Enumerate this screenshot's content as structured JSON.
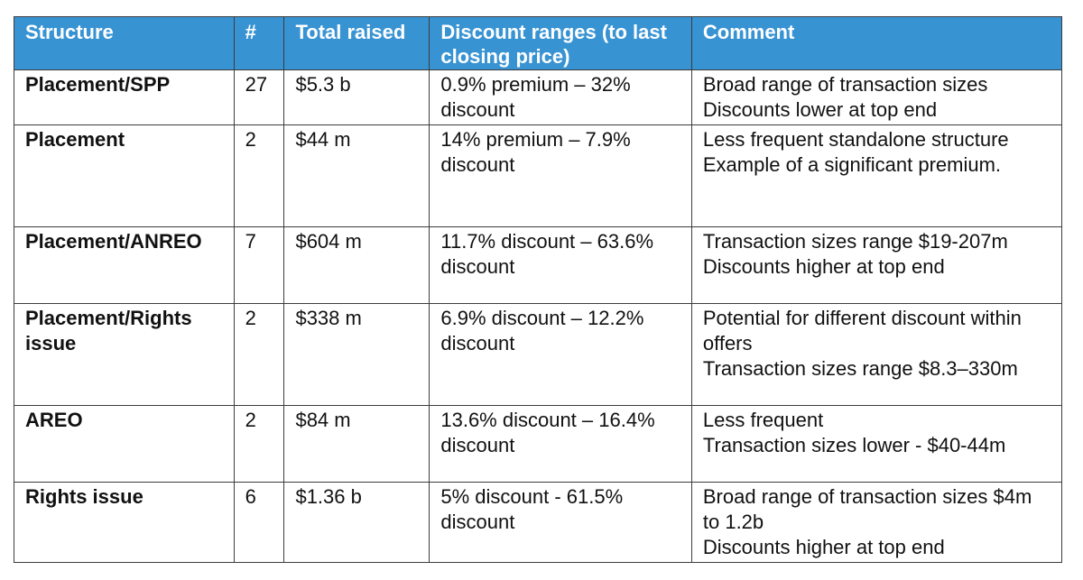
{
  "table": {
    "headers": [
      "Structure",
      "#",
      "Total raised",
      "Discount ranges (to last closing price)",
      "Comment"
    ],
    "rows": [
      {
        "structure": "Placement/SPP",
        "count": "27",
        "total": "$5.3 b",
        "discount": "0.9% premium – 32% discount",
        "comment": [
          "Broad range of transaction sizes",
          "Discounts lower at top end"
        ]
      },
      {
        "structure": "Placement",
        "count": "2",
        "total": "$44 m",
        "discount": "14% premium – 7.9% discount",
        "comment": [
          "Less frequent standalone structure",
          "Example of a significant premium."
        ]
      },
      {
        "structure": "Placement/ANREO",
        "count": "7",
        "total": "$604 m",
        "discount": "11.7% discount – 63.6% discount",
        "comment": [
          "Transaction sizes range $19-207m",
          "Discounts higher at top end"
        ]
      },
      {
        "structure": "Placement/Rights issue",
        "count": "2",
        "total": "$338 m",
        "discount": "6.9% discount – 12.2% discount",
        "comment": [
          "Potential for different discount within offers",
          "Transaction sizes range $8.3–330m"
        ]
      },
      {
        "structure": "AREO",
        "count": "2",
        "total": "$84 m",
        "discount": "13.6% discount – 16.4% discount",
        "comment": [
          "Less frequent",
          "Transaction sizes lower - $40-44m"
        ]
      },
      {
        "structure": "Rights issue",
        "count": "6",
        "total": "$1.36 b",
        "discount": "5% discount - 61.5% discount",
        "comment": [
          "Broad range of transaction sizes $4m to 1.2b",
          "Discounts higher at top end"
        ]
      }
    ]
  }
}
